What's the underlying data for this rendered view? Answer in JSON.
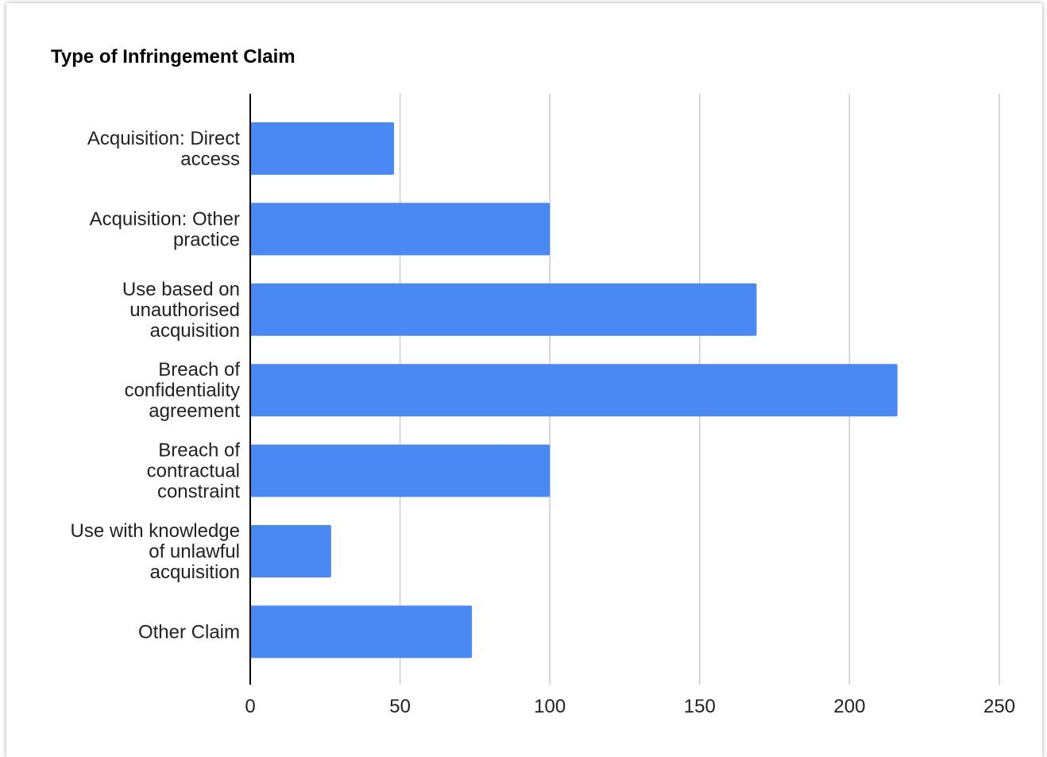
{
  "chart_data": {
    "type": "bar",
    "orientation": "horizontal",
    "title": "Type of Infringement Claim",
    "xlabel": "",
    "ylabel": "",
    "categories": [
      [
        "Acquisition: Direct",
        "access"
      ],
      [
        "Acquisition: Other",
        "practice"
      ],
      [
        "Use based on",
        "unauthorised",
        "acquisition"
      ],
      [
        "Breach of",
        "confidentiality",
        "agreement"
      ],
      [
        "Breach of",
        "contractual",
        "constraint"
      ],
      [
        "Use with knowledge",
        "of unlawful",
        "acquisition"
      ],
      [
        "Other Claim"
      ]
    ],
    "values": [
      48,
      100,
      169,
      216,
      100,
      27,
      74
    ],
    "xlim": [
      0,
      250
    ],
    "xticks": [
      0,
      50,
      100,
      150,
      200,
      250
    ],
    "grid": true,
    "legend": "none",
    "bar_color": "#4a89f3",
    "grid_color": "#cccccc",
    "axis_color": "#000000"
  }
}
